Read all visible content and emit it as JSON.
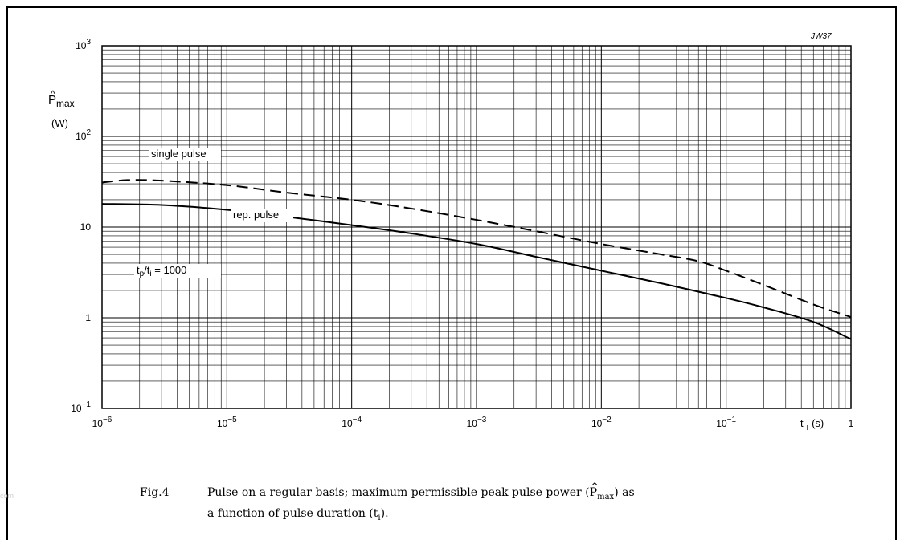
{
  "chart_data": {
    "type": "line",
    "x_scale": "log",
    "y_scale": "log",
    "xlim": [
      1e-06,
      1
    ],
    "ylim": [
      0.1,
      1000
    ],
    "x_ticks": [
      {
        "base": "10",
        "exp": "−6"
      },
      {
        "base": "10",
        "exp": "−5"
      },
      {
        "base": "10",
        "exp": "−4"
      },
      {
        "base": "10",
        "exp": "−3"
      },
      {
        "base": "10",
        "exp": "−2"
      },
      {
        "base": "10",
        "exp": "−1"
      },
      {
        "base": "1",
        "exp": ""
      }
    ],
    "y_ticks": [
      {
        "base": "10",
        "exp": "−1"
      },
      {
        "base": "1",
        "exp": ""
      },
      {
        "base": "10",
        "exp": ""
      },
      {
        "base": "10",
        "exp": "2"
      },
      {
        "base": "10",
        "exp": "3"
      }
    ],
    "ylabel": {
      "symbol": "P",
      "hat": "^",
      "sub": "max",
      "unit": "(W)"
    },
    "xlabel": {
      "symbol": "t",
      "sub": "i",
      "unit": "(s)"
    },
    "code": "JW37",
    "grid": true,
    "series": [
      {
        "name": "single pulse",
        "style": "dashed",
        "points": [
          [
            1e-06,
            31
          ],
          [
            1.6e-06,
            33
          ],
          [
            3e-06,
            32.5
          ],
          [
            1e-05,
            29
          ],
          [
            3e-05,
            24
          ],
          [
            0.0001,
            20
          ],
          [
            0.0003,
            16
          ],
          [
            0.001,
            12
          ],
          [
            0.003,
            9
          ],
          [
            0.01,
            6.5
          ],
          [
            0.03,
            5
          ],
          [
            0.06,
            4.2
          ],
          [
            0.1,
            3.3
          ],
          [
            0.2,
            2.3
          ],
          [
            0.5,
            1.4
          ],
          [
            1,
            1.02
          ]
        ]
      },
      {
        "name": "rep. pulse",
        "style": "solid",
        "points": [
          [
            1e-06,
            18
          ],
          [
            3e-06,
            17.5
          ],
          [
            1e-05,
            15.5
          ],
          [
            3e-05,
            13
          ],
          [
            0.0001,
            10.5
          ],
          [
            0.0003,
            8.5
          ],
          [
            0.001,
            6.5
          ],
          [
            0.003,
            4.7
          ],
          [
            0.01,
            3.3
          ],
          [
            0.03,
            2.4
          ],
          [
            0.1,
            1.65
          ],
          [
            0.2,
            1.3
          ],
          [
            0.5,
            0.9
          ],
          [
            1,
            0.58
          ]
        ]
      }
    ],
    "annotations": [
      {
        "id": "single",
        "text": "single pulse"
      },
      {
        "id": "rep",
        "text": "rep. pulse"
      },
      {
        "id": "ratio",
        "pre": "t",
        "pre_sub": "p",
        "mid": "/t",
        "mid_sub": "i",
        "post": " = 1000"
      }
    ]
  },
  "caption": {
    "number": "Fig.4",
    "line1_a": "Pulse on a regular basis; maximum permissible peak pulse power (",
    "line1_symbol": "P",
    "line1_sub": "max",
    "line1_b": ") as",
    "line2_a": "a function of pulse duration (t",
    "line2_sub": "i",
    "line2_b": ")."
  },
  "watermark": "com"
}
